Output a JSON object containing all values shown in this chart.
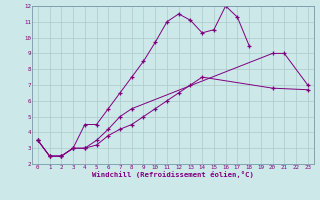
{
  "xlabel": "Windchill (Refroidissement éolien,°C)",
  "background_color": "#cce8e8",
  "line_color": "#800080",
  "grid_color": "#aacccc",
  "ylim": [
    2,
    12
  ],
  "xlim": [
    -0.5,
    23.5
  ],
  "yticks": [
    2,
    3,
    4,
    5,
    6,
    7,
    8,
    9,
    10,
    11,
    12
  ],
  "xticks": [
    0,
    1,
    2,
    3,
    4,
    5,
    6,
    7,
    8,
    9,
    10,
    11,
    12,
    13,
    14,
    15,
    16,
    17,
    18,
    19,
    20,
    21,
    22,
    23
  ],
  "line1_x": [
    0,
    1,
    2,
    3,
    4,
    5,
    6,
    7,
    8,
    9,
    10,
    11,
    12,
    13,
    14,
    15,
    16,
    17,
    18
  ],
  "line1_y": [
    3.5,
    2.5,
    2.5,
    3.0,
    4.5,
    4.5,
    5.5,
    6.5,
    7.5,
    8.5,
    9.7,
    11.0,
    11.5,
    11.1,
    10.3,
    10.5,
    12.0,
    11.3,
    9.5
  ],
  "line2_x": [
    0,
    1,
    2,
    3,
    4,
    5,
    6,
    7,
    8,
    20,
    21,
    23
  ],
  "line2_y": [
    3.5,
    2.5,
    2.5,
    3.0,
    3.0,
    3.5,
    4.2,
    5.0,
    5.5,
    9.0,
    9.0,
    7.0
  ],
  "line3_x": [
    0,
    1,
    2,
    3,
    4,
    5,
    6,
    7,
    8,
    9,
    10,
    11,
    12,
    13,
    14,
    20,
    23
  ],
  "line3_y": [
    3.5,
    2.5,
    2.5,
    3.0,
    3.0,
    3.2,
    3.8,
    4.2,
    4.5,
    5.0,
    5.5,
    6.0,
    6.5,
    7.0,
    7.5,
    6.8,
    6.7
  ]
}
